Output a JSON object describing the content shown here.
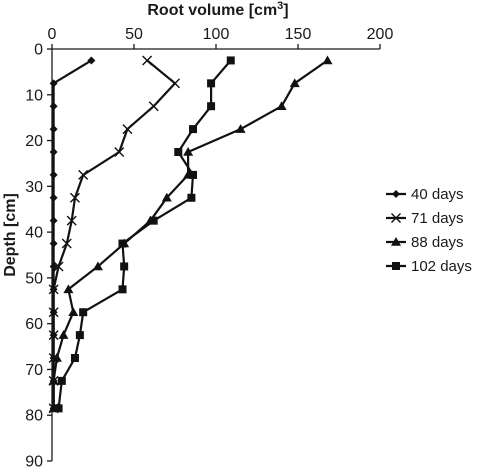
{
  "chart_data": {
    "type": "line",
    "title": "",
    "xlabel": "Root volume [cm",
    "xlabel_sup": "3",
    "xlabel_suffix": "]",
    "ylabel": "Depth [cm]",
    "xlim": [
      0,
      200
    ],
    "ylim": [
      0,
      90
    ],
    "y_inverted": true,
    "x_axis_position": "top",
    "x_ticks": [
      0,
      50,
      100,
      150,
      200
    ],
    "y_ticks": [
      0,
      10,
      20,
      30,
      40,
      50,
      60,
      70,
      80,
      90
    ],
    "grid": false,
    "legend_position": "right",
    "series": [
      {
        "name": "40 days",
        "marker": "diamond",
        "points": [
          [
            24,
            2.5
          ],
          [
            1,
            7.5
          ],
          [
            1,
            12.5
          ],
          [
            1,
            17.5
          ],
          [
            1,
            22.5
          ],
          [
            1,
            27.5
          ],
          [
            1,
            32.5
          ],
          [
            1,
            37.5
          ],
          [
            1,
            42.5
          ],
          [
            1,
            47.5
          ],
          [
            1,
            52.5
          ],
          [
            1,
            57.5
          ],
          [
            1,
            62.5
          ],
          [
            1,
            67.5
          ],
          [
            1,
            72.5
          ],
          [
            1,
            78.5
          ]
        ]
      },
      {
        "name": "71 days",
        "marker": "x",
        "points": [
          [
            58,
            2.5
          ],
          [
            75,
            7.5
          ],
          [
            62,
            12.5
          ],
          [
            46,
            17.5
          ],
          [
            41,
            22.5
          ],
          [
            19,
            27.5
          ],
          [
            14,
            32.5
          ],
          [
            12,
            37.5
          ],
          [
            9,
            42.5
          ],
          [
            4,
            47.5
          ],
          [
            1,
            52.5
          ],
          [
            1,
            57.5
          ],
          [
            1,
            62.5
          ],
          [
            1,
            67.5
          ],
          [
            1,
            72.5
          ],
          [
            1,
            78.5
          ]
        ]
      },
      {
        "name": "88 days",
        "marker": "triangle",
        "points": [
          [
            168,
            2.5
          ],
          [
            148,
            7.5
          ],
          [
            140,
            12.5
          ],
          [
            115,
            17.5
          ],
          [
            83,
            22.5
          ],
          [
            83,
            27.5
          ],
          [
            70,
            32.5
          ],
          [
            60,
            37.5
          ],
          [
            44,
            42.5
          ],
          [
            28,
            47.5
          ],
          [
            10,
            52.5
          ],
          [
            13,
            57.5
          ],
          [
            7,
            62.5
          ],
          [
            3,
            67.5
          ],
          [
            1,
            72.5
          ],
          [
            1,
            78.5
          ]
        ]
      },
      {
        "name": "102 days",
        "marker": "square",
        "points": [
          [
            109,
            2.5
          ],
          [
            97,
            7.5
          ],
          [
            97,
            12.5
          ],
          [
            86,
            17.5
          ],
          [
            77,
            22.5
          ],
          [
            86,
            27.5
          ],
          [
            85,
            32.5
          ],
          [
            62,
            37.5
          ],
          [
            43,
            42.5
          ],
          [
            44,
            47.5
          ],
          [
            43,
            52.5
          ],
          [
            19,
            57.5
          ],
          [
            17,
            62.5
          ],
          [
            14,
            67.5
          ],
          [
            6,
            72.5
          ],
          [
            4,
            78.5
          ]
        ]
      }
    ]
  }
}
